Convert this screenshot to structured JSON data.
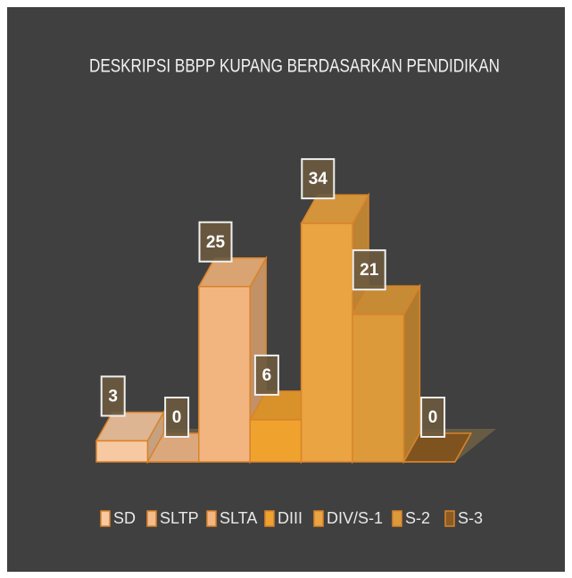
{
  "chart_data": {
    "type": "bar",
    "title": "DESKRIPSI BBPP KUPANG BERDASARKAN PENDIDIKAN",
    "categories": [
      "SD",
      "SLTP",
      "SLTA",
      "DIII",
      "DIV/S-1",
      "S-2",
      "S-3"
    ],
    "values": [
      3,
      0,
      25,
      6,
      34,
      21,
      0
    ],
    "colors": [
      "#f6c9a2",
      "#f3bb8c",
      "#f2b57f",
      "#f0a22e",
      "#eaa441",
      "#dc9a3a",
      "#8c5c22"
    ]
  }
}
